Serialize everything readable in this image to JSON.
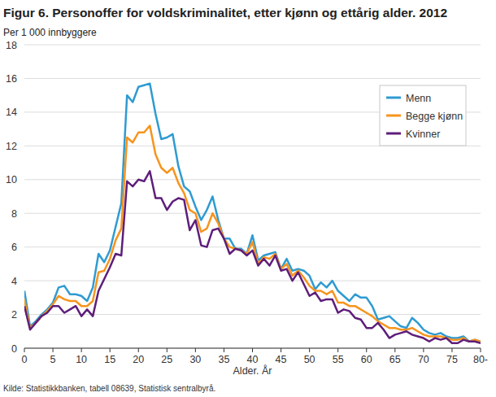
{
  "chart_data": {
    "type": "line",
    "title": "Figur 6. Personoffer for voldskriminalitet, etter kjønn og ettårig alder. 2012",
    "subtitle": "Per 1 000 innbyggere",
    "x_label": "Alder. År",
    "source": "Kilde: Statistikkbanken, tabell 08639, Statistisk sentralbyrå.",
    "x": [
      0,
      1,
      2,
      3,
      4,
      5,
      6,
      7,
      8,
      9,
      10,
      11,
      12,
      13,
      14,
      15,
      16,
      17,
      18,
      19,
      20,
      21,
      22,
      23,
      24,
      25,
      26,
      27,
      28,
      29,
      30,
      31,
      32,
      33,
      34,
      35,
      36,
      37,
      38,
      39,
      40,
      41,
      42,
      43,
      44,
      45,
      46,
      47,
      48,
      49,
      50,
      51,
      52,
      53,
      54,
      55,
      56,
      57,
      58,
      59,
      60,
      61,
      62,
      63,
      64,
      65,
      66,
      67,
      68,
      69,
      70,
      71,
      72,
      73,
      74,
      75,
      76,
      77,
      78,
      79,
      80
    ],
    "series": [
      {
        "name": "Menn",
        "color": "#2f9bd1",
        "values": [
          3.4,
          1.3,
          1.6,
          2.0,
          2.3,
          2.7,
          3.6,
          3.7,
          3.2,
          3.2,
          3.1,
          2.8,
          3.6,
          5.6,
          5.1,
          5.8,
          7.2,
          8.6,
          15.0,
          14.6,
          15.5,
          15.6,
          15.7,
          13.9,
          12.4,
          12.5,
          12.7,
          10.8,
          9.6,
          9.3,
          8.4,
          7.6,
          8.2,
          9.0,
          7.6,
          6.5,
          6.5,
          5.9,
          5.9,
          5.6,
          6.7,
          5.2,
          5.5,
          5.6,
          5.7,
          4.7,
          5.3,
          4.6,
          4.7,
          4.6,
          4.3,
          3.5,
          3.9,
          3.6,
          4.0,
          3.4,
          3.1,
          2.8,
          3.2,
          3.0,
          3.0,
          2.5,
          1.7,
          1.8,
          1.9,
          1.6,
          1.3,
          1.2,
          1.8,
          1.5,
          1.1,
          0.9,
          0.8,
          0.9,
          0.7,
          0.6,
          0.6,
          0.7,
          0.4,
          0.5,
          0.4
        ]
      },
      {
        "name": "Begge kjønn",
        "color": "#f7941d",
        "values": [
          2.9,
          1.2,
          1.5,
          1.9,
          2.2,
          2.6,
          3.1,
          2.9,
          2.8,
          2.8,
          2.5,
          2.5,
          2.8,
          4.5,
          4.6,
          5.3,
          6.4,
          7.1,
          12.5,
          12.2,
          12.8,
          12.8,
          13.2,
          11.5,
          10.7,
          10.4,
          10.7,
          9.8,
          9.2,
          8.2,
          8.0,
          6.9,
          7.1,
          8.0,
          7.4,
          6.5,
          6.0,
          5.9,
          5.8,
          5.6,
          6.3,
          5.0,
          5.4,
          5.3,
          5.6,
          4.7,
          5.0,
          4.3,
          4.6,
          4.2,
          3.7,
          3.4,
          3.4,
          3.2,
          3.4,
          2.7,
          2.7,
          2.5,
          2.5,
          2.3,
          2.1,
          1.9,
          1.6,
          1.4,
          1.2,
          1.2,
          1.1,
          1.1,
          1.2,
          1.0,
          0.8,
          0.7,
          0.7,
          0.7,
          0.6,
          0.5,
          0.5,
          0.6,
          0.4,
          0.5,
          0.4
        ]
      },
      {
        "name": "Kvinner",
        "color": "#5e1e7a",
        "values": [
          2.5,
          1.1,
          1.5,
          1.9,
          2.1,
          2.5,
          2.5,
          2.1,
          2.3,
          2.5,
          1.9,
          2.3,
          1.9,
          3.4,
          4.1,
          4.8,
          5.6,
          5.5,
          9.9,
          9.6,
          10.0,
          9.9,
          10.5,
          8.9,
          8.9,
          8.2,
          8.7,
          8.9,
          8.8,
          7.0,
          7.6,
          6.1,
          6.0,
          7.0,
          7.1,
          6.5,
          5.6,
          5.9,
          5.8,
          5.5,
          5.8,
          4.9,
          5.3,
          4.9,
          5.5,
          4.6,
          4.7,
          4.0,
          4.5,
          3.8,
          3.1,
          3.3,
          2.8,
          2.9,
          2.9,
          2.1,
          2.3,
          2.2,
          1.8,
          1.7,
          1.2,
          1.2,
          1.5,
          1.1,
          0.6,
          0.8,
          0.9,
          1.0,
          0.8,
          0.7,
          0.6,
          0.4,
          0.6,
          0.5,
          0.6,
          0.3,
          0.3,
          0.5,
          0.4,
          0.4,
          0.3
        ]
      }
    ],
    "xlim": [
      0,
      80
    ],
    "xticks": [
      0,
      5,
      10,
      15,
      20,
      25,
      30,
      35,
      40,
      45,
      50,
      55,
      60,
      65,
      70,
      75,
      {
        "value": 80,
        "label": "80-"
      }
    ],
    "ylim": [
      0,
      18
    ],
    "yticks": [
      0,
      2,
      4,
      6,
      8,
      10,
      12,
      14,
      16,
      18
    ],
    "grid": true,
    "legend": "upper right"
  }
}
